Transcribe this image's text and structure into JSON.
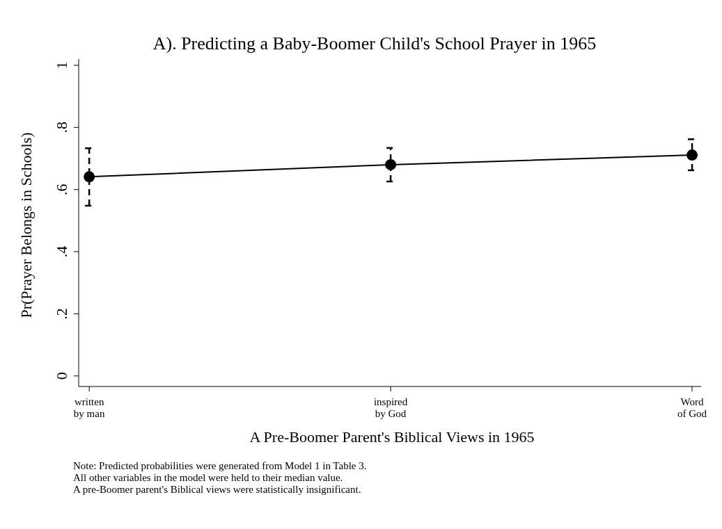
{
  "chart_data": {
    "type": "line",
    "title": "A). Predicting a Baby-Boomer Child's School Prayer in 1965",
    "xlabel": "A Pre-Boomer Parent's Biblical Views in 1965",
    "ylabel": "Pr(Prayer Belongs in Schools)",
    "categories": [
      "written\nby man",
      "inspired\nby God",
      "Word\nof God"
    ],
    "series": [
      {
        "color": "#000000",
        "values": [
          0.641,
          0.68,
          0.711
        ],
        "errors": [
          [
            0.548,
            0.733
          ],
          [
            0.626,
            0.734
          ],
          [
            0.662,
            0.762
          ]
        ]
      }
    ],
    "ylim": [
      -0.034,
      1.02
    ],
    "yticks": [
      0,
      {
        "value": 0.2,
        "label": ".2"
      },
      {
        "value": 0.4,
        "label": ".4"
      },
      {
        "value": 0.6,
        "label": ".6"
      },
      {
        "value": 0.8,
        "label": ".8"
      },
      1
    ],
    "grid": false,
    "legend": false,
    "marker": "circle",
    "line_style": "solid",
    "annotations": [
      "Note: Predicted probabilities were generated from Model 1 in Table 3.",
      "All other variables in the model were held to their median value.",
      "A pre-Boomer parent's Biblical views were statistically insignificant."
    ]
  }
}
